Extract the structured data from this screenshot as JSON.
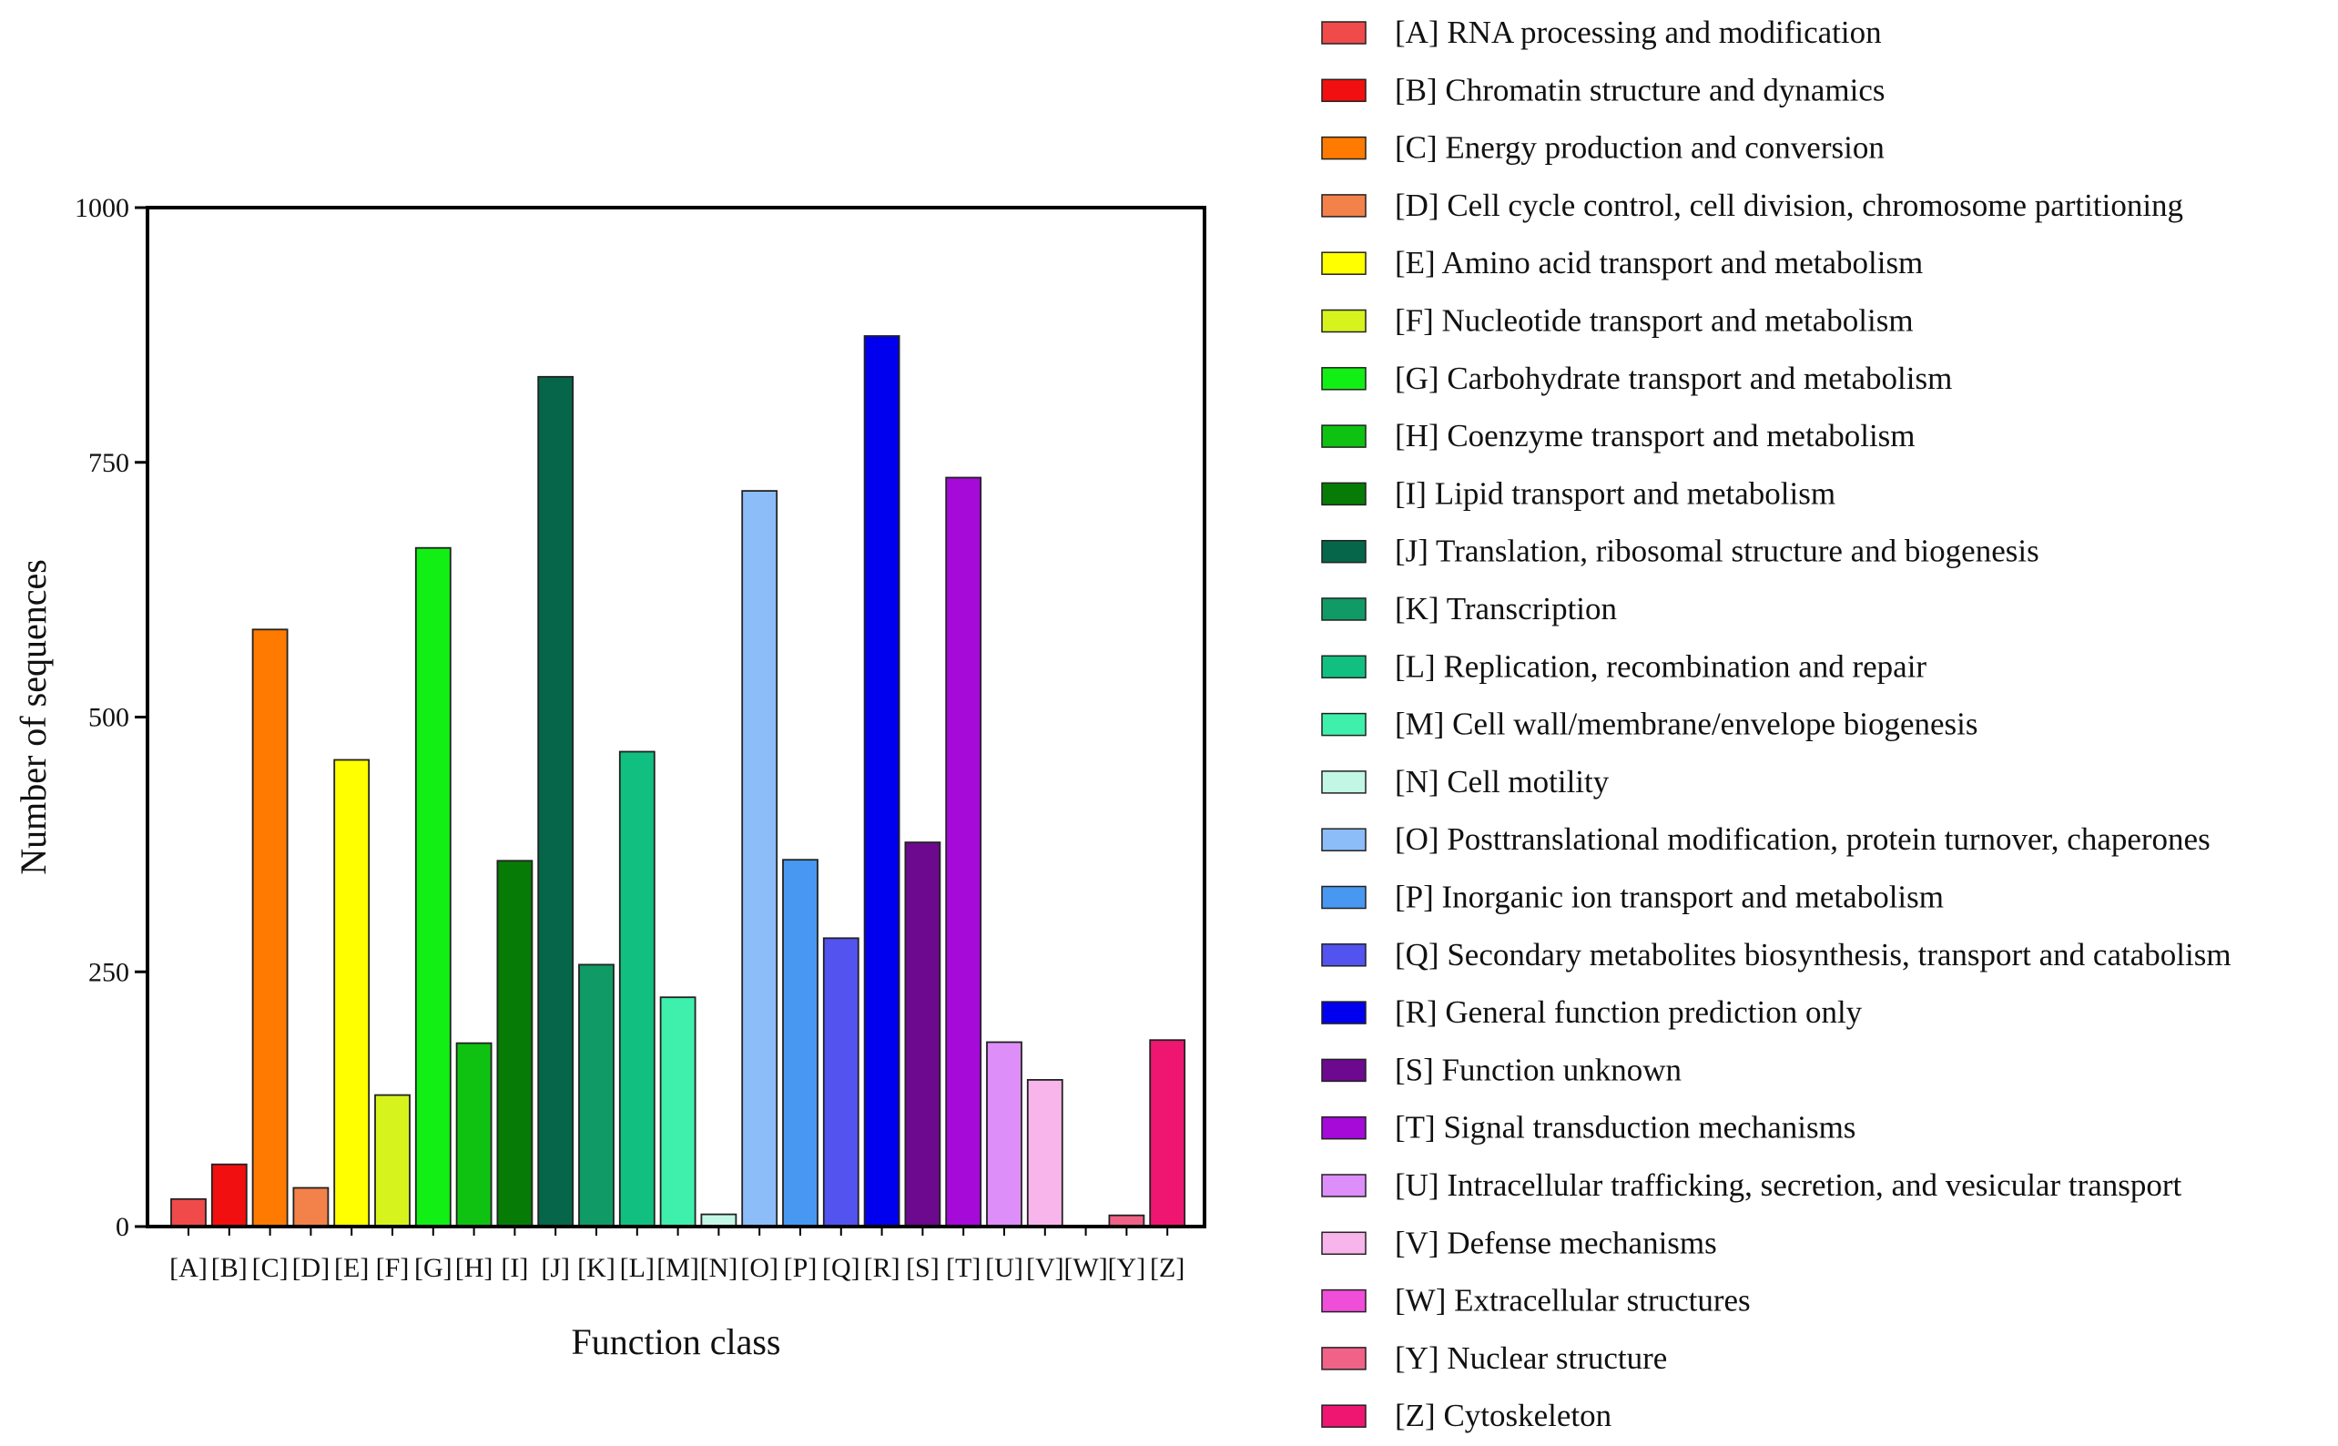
{
  "chart_data": {
    "type": "bar",
    "title": "",
    "xlabel": "Function class",
    "ylabel": "Number of sequences",
    "ylim": [
      0,
      1000
    ],
    "yticks": [
      0,
      250,
      500,
      750,
      1000
    ],
    "grid": false,
    "legend_position": "right",
    "categories": [
      "[A]",
      "[B]",
      "[C]",
      "[D]",
      "[E]",
      "[F]",
      "[G]",
      "[H]",
      "[I]",
      "[J]",
      "[K]",
      "[L]",
      "[M]",
      "[N]",
      "[O]",
      "[P]",
      "[Q]",
      "[R]",
      "[S]",
      "[T]",
      "[U]",
      "[V]",
      "[W]",
      "[Y]",
      "[Z]"
    ],
    "values": [
      27,
      61,
      586,
      38,
      458,
      129,
      666,
      180,
      359,
      834,
      257,
      466,
      225,
      12,
      722,
      360,
      283,
      874,
      377,
      735,
      181,
      144,
      0,
      11,
      183
    ],
    "colors": [
      "#f04a4a",
      "#f20f0f",
      "#ff7a00",
      "#f3814a",
      "#ffff00",
      "#d7f31d",
      "#12ef14",
      "#0fc212",
      "#067c06",
      "#066649",
      "#109a65",
      "#11c080",
      "#3ef0ac",
      "#c3f7e5",
      "#8cbdf9",
      "#4898f1",
      "#5353ef",
      "#0000ef",
      "#6d098e",
      "#a50ad8",
      "#dd8ef8",
      "#f7b5ec",
      "#f04ed8",
      "#f06287",
      "#ee1670"
    ],
    "legend": [
      "[A] RNA processing and modification",
      "[B] Chromatin structure and dynamics",
      "[C] Energy production and conversion",
      "[D] Cell cycle control, cell division, chromosome partitioning",
      "[E] Amino acid transport and metabolism",
      "[F] Nucleotide transport and metabolism",
      "[G] Carbohydrate transport and metabolism",
      "[H] Coenzyme transport and metabolism",
      "[I] Lipid transport and metabolism",
      "[J] Translation, ribosomal structure and biogenesis",
      "[K] Transcription",
      "[L] Replication, recombination and repair",
      "[M] Cell wall/membrane/envelope biogenesis",
      "[N] Cell motility",
      "[O] Posttranslational modification, protein turnover, chaperones",
      "[P] Inorganic ion transport and metabolism",
      "[Q] Secondary metabolites biosynthesis, transport and catabolism",
      "[R] General function prediction only",
      "[S] Function unknown",
      "[T] Signal transduction mechanisms",
      "[U] Intracellular trafficking, secretion, and vesicular transport",
      "[V] Defense mechanisms",
      "[W] Extracellular structures",
      "[Y] Nuclear structure",
      "[Z] Cytoskeleton"
    ]
  }
}
